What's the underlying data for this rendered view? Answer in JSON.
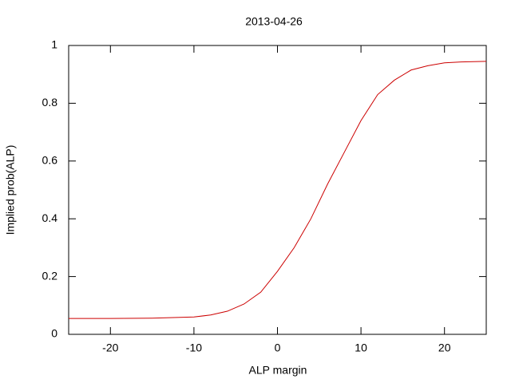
{
  "chart_data": {
    "type": "line",
    "title": "2013-04-26",
    "x_label": "ALP margin",
    "y_label": "Implied prob(ALP)",
    "x": [
      -25,
      -20,
      -15,
      -10,
      -8,
      -6,
      -4,
      -2,
      0,
      2,
      4,
      6,
      8,
      10,
      12,
      14,
      16,
      18,
      20,
      22,
      25
    ],
    "values": [
      0.055,
      0.055,
      0.056,
      0.06,
      0.067,
      0.08,
      0.105,
      0.146,
      0.218,
      0.3,
      0.4,
      0.52,
      0.63,
      0.74,
      0.83,
      0.88,
      0.915,
      0.93,
      0.94,
      0.943,
      0.945
    ],
    "color": "#cc0000",
    "xlim": [
      -25,
      25
    ],
    "xticks": [
      -20,
      -10,
      0,
      10,
      20
    ],
    "ylim": [
      0,
      1
    ],
    "yticks": [
      0,
      0.2,
      0.4,
      0.6,
      0.8,
      1
    ],
    "grid": false
  }
}
